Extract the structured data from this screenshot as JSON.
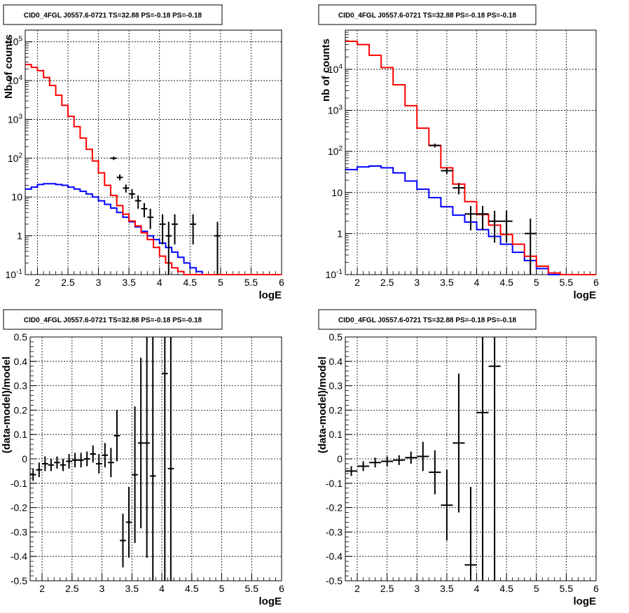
{
  "page_title": "CID0_4FGL J0557.6-0721 TS=32.88 PS=-0.18 PS=-0.18",
  "colors": {
    "model_total": "#ff0000",
    "model_background": "#0000ff",
    "data": "#000000",
    "grid": "#000000"
  },
  "chart_data": [
    {
      "type": "histogram-log",
      "title": "CID0_4FGL J0557.6-0721 TS=32.88 PS=-0.18 PS=-0.18",
      "xlabel": "logE",
      "ylabel": "Nb of counts",
      "xlim": [
        1.8,
        6.0
      ],
      "ylim": [
        0.1,
        200000
      ],
      "yscale": "log",
      "grid": true,
      "xticks": [
        "2",
        "2.5",
        "3",
        "3.5",
        "4",
        "4.5",
        "5",
        "5.5",
        "6"
      ],
      "yticks": [
        "10^-1",
        "1",
        "10",
        "10^2",
        "10^3",
        "10^4",
        "10^5"
      ],
      "bin_edges": [
        1.8,
        1.9,
        2.0,
        2.1,
        2.2,
        2.3,
        2.4,
        2.5,
        2.6,
        2.7,
        2.8,
        2.9,
        3.0,
        3.1,
        3.2,
        3.3,
        3.4,
        3.5,
        3.6,
        3.7,
        3.8,
        3.9,
        4.0,
        4.1,
        4.2,
        4.3,
        4.4,
        4.5,
        4.6,
        4.7,
        4.8,
        4.9,
        5.0,
        5.1,
        5.2,
        5.3,
        5.4,
        5.5,
        5.6,
        5.7,
        5.8,
        5.9,
        6.0
      ],
      "series": [
        {
          "name": "",
          "kind": "model_total",
          "color": "#ff0000",
          "values": [
            26000,
            22000,
            18000,
            12000,
            7500,
            4200,
            2300,
            1200,
            650,
            330,
            170,
            85,
            42,
            20,
            11,
            6,
            3.6,
            2.4,
            1.8,
            1.2,
            0.8,
            0.5,
            0.3,
            0.2,
            0.15,
            0.12,
            0.1,
            0.1,
            0.1,
            0.1,
            0.1,
            0.1,
            0.1,
            0.1,
            0.1,
            0.1,
            0.1,
            0.1,
            0.1,
            0.1,
            0.1,
            0.1
          ]
        },
        {
          "name": "",
          "kind": "model_background",
          "color": "#0000ff",
          "values": [
            16,
            18,
            21,
            22,
            22,
            21,
            20,
            18,
            16,
            14,
            12,
            10,
            8,
            6.5,
            5.2,
            4,
            3,
            2.3,
            1.7,
            1.3,
            1.0,
            0.8,
            0.65,
            0.5,
            0.38,
            0.28,
            0.2,
            0.15,
            0.12,
            0.1,
            0.1,
            0.1,
            0.1,
            0.1,
            0.1,
            0.1,
            0.1,
            0.1,
            0.1,
            0.1,
            0.1,
            0.1
          ]
        }
      ],
      "data_points": [
        {
          "x": 3.25,
          "y": 100,
          "yerr_lo": 90,
          "yerr_hi": 110
        },
        {
          "x": 3.35,
          "y": 32,
          "yerr_lo": 27,
          "yerr_hi": 38
        },
        {
          "x": 3.45,
          "y": 17,
          "yerr_lo": 13,
          "yerr_hi": 21
        },
        {
          "x": 3.55,
          "y": 12,
          "yerr_lo": 9,
          "yerr_hi": 16
        },
        {
          "x": 3.65,
          "y": 8,
          "yerr_lo": 5,
          "yerr_hi": 11
        },
        {
          "x": 3.75,
          "y": 5,
          "yerr_lo": 3,
          "yerr_hi": 7
        },
        {
          "x": 3.85,
          "y": 3,
          "yerr_lo": 1.5,
          "yerr_hi": 5
        },
        {
          "x": 4.05,
          "y": 2,
          "yerr_lo": 0.6,
          "yerr_hi": 3.6
        },
        {
          "x": 4.15,
          "y": 1,
          "yerr_lo": 0.1,
          "yerr_hi": 2.3
        },
        {
          "x": 4.25,
          "y": 2,
          "yerr_lo": 0.6,
          "yerr_hi": 3.6
        },
        {
          "x": 4.55,
          "y": 2,
          "yerr_lo": 0.6,
          "yerr_hi": 3.6
        },
        {
          "x": 4.95,
          "y": 1,
          "yerr_lo": 0.1,
          "yerr_hi": 2.3
        }
      ]
    },
    {
      "type": "histogram-log",
      "title": "CID0_4FGL J0557.6-0721 TS=32.88 PS=-0.18 PS=-0.18",
      "xlabel": "logE",
      "ylabel": "nb of counts",
      "xlim": [
        1.8,
        6.0
      ],
      "ylim": [
        0.1,
        90000
      ],
      "yscale": "log",
      "grid": true,
      "xticks": [
        "2",
        "2.5",
        "3",
        "3.5",
        "4",
        "4.5",
        "5",
        "5.5",
        "6"
      ],
      "yticks": [
        "10^-1",
        "1",
        "10",
        "10^2",
        "10^3",
        "10^4"
      ],
      "bin_edges": [
        1.8,
        2.0,
        2.2,
        2.4,
        2.6,
        2.8,
        3.0,
        3.2,
        3.4,
        3.6,
        3.8,
        4.0,
        4.2,
        4.4,
        4.6,
        4.8,
        5.0,
        5.2,
        5.4,
        5.6,
        5.8,
        6.0
      ],
      "series": [
        {
          "name": "",
          "kind": "model_total",
          "color": "#ff0000",
          "values": [
            48000,
            40000,
            22000,
            11000,
            4200,
            1300,
            370,
            140,
            40,
            16,
            6,
            2.9,
            1.6,
            0.95,
            0.55,
            0.28,
            0.16,
            0.11,
            0.1,
            0.1,
            0.1
          ]
        },
        {
          "name": "",
          "kind": "model_background",
          "color": "#0000ff",
          "values": [
            36,
            42,
            44,
            40,
            30,
            19,
            12,
            7.5,
            4.5,
            2.8,
            1.9,
            1.25,
            0.85,
            0.55,
            0.35,
            0.22,
            0.14,
            0.1,
            0.1,
            0.1,
            0.1
          ]
        }
      ],
      "data_points": [
        {
          "x": 3.3,
          "y": 140,
          "yerr_lo": 125,
          "yerr_hi": 155
        },
        {
          "x": 3.5,
          "y": 34,
          "yerr_lo": 28,
          "yerr_hi": 40
        },
        {
          "x": 3.7,
          "y": 13,
          "yerr_lo": 9,
          "yerr_hi": 17
        },
        {
          "x": 3.9,
          "y": 3,
          "yerr_lo": 1.2,
          "yerr_hi": 4.7
        },
        {
          "x": 4.1,
          "y": 3,
          "yerr_lo": 1.2,
          "yerr_hi": 4.7
        },
        {
          "x": 4.3,
          "y": 2,
          "yerr_lo": 0.6,
          "yerr_hi": 3.6
        },
        {
          "x": 4.5,
          "y": 2,
          "yerr_lo": 0.6,
          "yerr_hi": 3.6
        },
        {
          "x": 4.9,
          "y": 1,
          "yerr_lo": 0.1,
          "yerr_hi": 2.3
        }
      ]
    },
    {
      "type": "scatter-errorbar",
      "title": "CID0_4FGL J0557.6-0721 TS=32.88 PS=-0.18 PS=-0.18",
      "xlabel": "logE",
      "ylabel": "(data-model)/model",
      "xlim": [
        1.8,
        6.0
      ],
      "ylim": [
        -0.5,
        0.5
      ],
      "grid": true,
      "xticks": [
        "2",
        "2.5",
        "3",
        "3.5",
        "4",
        "4.5",
        "5",
        "5.5",
        "6"
      ],
      "yticks": [
        "-0.5",
        "-0.4",
        "-0.3",
        "-0.2",
        "-0.1",
        "0",
        "0.1",
        "0.2",
        "0.3",
        "0.4",
        "0.5"
      ],
      "points": [
        {
          "x": 1.85,
          "y": -0.065,
          "xerr": 0.05,
          "yerr": 0.025
        },
        {
          "x": 1.95,
          "y": -0.045,
          "xerr": 0.05,
          "yerr": 0.03
        },
        {
          "x": 2.05,
          "y": -0.02,
          "xerr": 0.05,
          "yerr": 0.03
        },
        {
          "x": 2.15,
          "y": -0.025,
          "xerr": 0.05,
          "yerr": 0.025
        },
        {
          "x": 2.25,
          "y": -0.015,
          "xerr": 0.05,
          "yerr": 0.025
        },
        {
          "x": 2.35,
          "y": -0.025,
          "xerr": 0.05,
          "yerr": 0.025
        },
        {
          "x": 2.45,
          "y": -0.01,
          "xerr": 0.05,
          "yerr": 0.03
        },
        {
          "x": 2.55,
          "y": -0.005,
          "xerr": 0.05,
          "yerr": 0.03
        },
        {
          "x": 2.65,
          "y": -0.005,
          "xerr": 0.05,
          "yerr": 0.03
        },
        {
          "x": 2.75,
          "y": 0.0,
          "xerr": 0.05,
          "yerr": 0.03
        },
        {
          "x": 2.85,
          "y": 0.02,
          "xerr": 0.05,
          "yerr": 0.035
        },
        {
          "x": 2.95,
          "y": -0.02,
          "xerr": 0.05,
          "yerr": 0.04
        },
        {
          "x": 3.05,
          "y": 0.015,
          "xerr": 0.05,
          "yerr": 0.05
        },
        {
          "x": 3.15,
          "y": -0.015,
          "xerr": 0.05,
          "yerr": 0.06
        },
        {
          "x": 3.25,
          "y": 0.095,
          "xerr": 0.05,
          "yerr": 0.105
        },
        {
          "x": 3.35,
          "y": -0.335,
          "xerr": 0.05,
          "yerr": 0.11
        },
        {
          "x": 3.45,
          "y": -0.26,
          "xerr": 0.05,
          "yerr": 0.145
        },
        {
          "x": 3.55,
          "y": -0.065,
          "xerr": 0.05,
          "yerr": 0.28
        },
        {
          "x": 3.65,
          "y": 0.065,
          "xerr": 0.05,
          "yerr": 0.35
        },
        {
          "x": 3.75,
          "y": 0.065,
          "xerr": 0.05,
          "yerr": 0.47
        },
        {
          "x": 3.85,
          "y": -0.07,
          "xerr": 0.05,
          "yerr": 0.6
        },
        {
          "x": 4.05,
          "y": 0.35,
          "xerr": 0.05,
          "yerr": 0.9
        },
        {
          "x": 4.15,
          "y": -0.04,
          "xerr": 0.05,
          "yerr": 0.9
        }
      ]
    },
    {
      "type": "scatter-errorbar",
      "title": "CID0_4FGL J0557.6-0721 TS=32.88 PS=-0.18 PS=-0.18",
      "xlabel": "logE",
      "ylabel": "(data-model)/model",
      "xlim": [
        1.8,
        6.0
      ],
      "ylim": [
        -0.5,
        0.5
      ],
      "grid": true,
      "xticks": [
        "2",
        "2.5",
        "3",
        "3.5",
        "4",
        "4.5",
        "5",
        "5.5",
        "6"
      ],
      "yticks": [
        "-0.5",
        "-0.4",
        "-0.3",
        "-0.2",
        "-0.1",
        "0",
        "0.1",
        "0.2",
        "0.3",
        "0.4",
        "0.5"
      ],
      "points": [
        {
          "x": 1.9,
          "y": -0.05,
          "xerr": 0.1,
          "yerr": 0.02
        },
        {
          "x": 2.1,
          "y": -0.03,
          "xerr": 0.1,
          "yerr": 0.02
        },
        {
          "x": 2.3,
          "y": -0.015,
          "xerr": 0.1,
          "yerr": 0.02
        },
        {
          "x": 2.5,
          "y": -0.01,
          "xerr": 0.1,
          "yerr": 0.02
        },
        {
          "x": 2.7,
          "y": -0.005,
          "xerr": 0.1,
          "yerr": 0.02
        },
        {
          "x": 2.9,
          "y": 0.005,
          "xerr": 0.1,
          "yerr": 0.025
        },
        {
          "x": 3.1,
          "y": 0.01,
          "xerr": 0.1,
          "yerr": 0.06
        },
        {
          "x": 3.3,
          "y": -0.055,
          "xerr": 0.1,
          "yerr": 0.09
        },
        {
          "x": 3.5,
          "y": -0.19,
          "xerr": 0.1,
          "yerr": 0.145
        },
        {
          "x": 3.7,
          "y": 0.065,
          "xerr": 0.1,
          "yerr": 0.285
        },
        {
          "x": 3.9,
          "y": -0.435,
          "xerr": 0.1,
          "yerr": 0.32
        },
        {
          "x": 4.1,
          "y": 0.19,
          "xerr": 0.1,
          "yerr": 0.9
        },
        {
          "x": 4.3,
          "y": 0.38,
          "xerr": 0.1,
          "yerr": 0.9
        }
      ]
    }
  ]
}
